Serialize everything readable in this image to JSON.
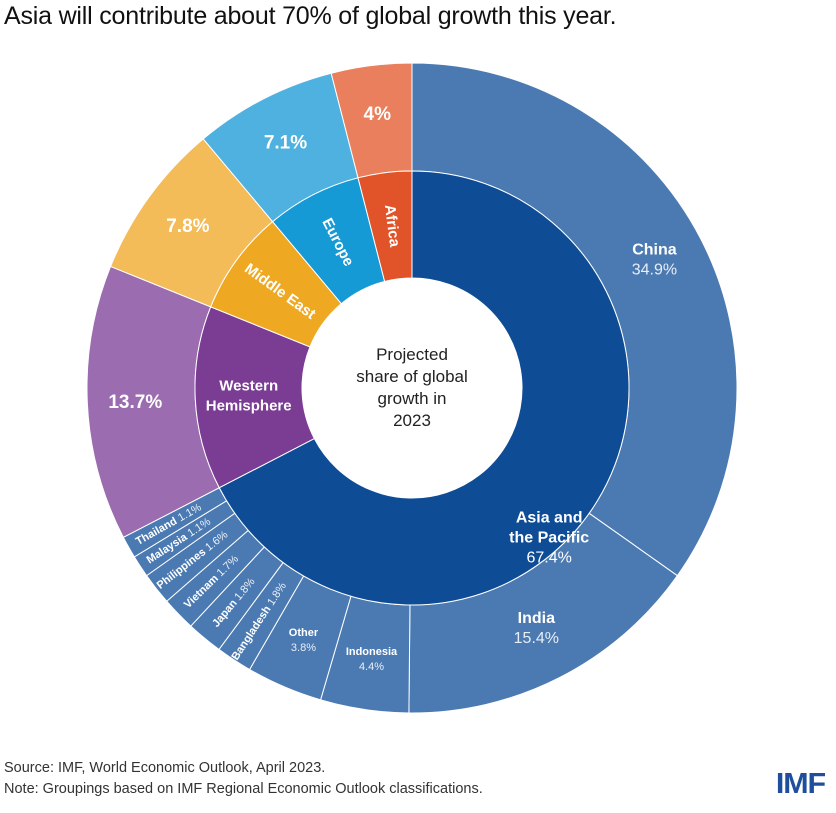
{
  "title": "Asia will contribute about 70% of global growth this year.",
  "source_line": "Source: IMF, World Economic Outlook, April 2023.",
  "note_line": "Note: Groupings based on IMF Regional Economic Outlook classifications.",
  "logo": "IMF",
  "chart_data": {
    "type": "pie",
    "subtype": "sunburst-donut",
    "title": "Asia will contribute about 70% of global growth this year.",
    "center_label": [
      "Projected",
      "share of global",
      "growth in",
      "2023"
    ],
    "unit": "% of projected global growth, 2023",
    "direction": "clockwise from top",
    "inner_ring": [
      {
        "name": "Asia and the Pacific",
        "value": 67.4,
        "label_lines": [
          "Asia and",
          "the Pacific",
          "67.4%"
        ],
        "color": "#0f4c96"
      },
      {
        "name": "Western Hemisphere",
        "value": 13.7,
        "label_lines": [
          "Western",
          "Hemisphere"
        ],
        "color": "#7b3c93"
      },
      {
        "name": "Middle East",
        "value": 7.8,
        "label_lines": [
          "Middle East"
        ],
        "color": "#efa821"
      },
      {
        "name": "Europe",
        "value": 7.1,
        "label_lines": [
          "Europe"
        ],
        "color": "#169ad6"
      },
      {
        "name": "Africa",
        "value": 4.0,
        "label_lines": [
          "Africa"
        ],
        "color": "#e15329"
      }
    ],
    "outer_ring": [
      {
        "name": "China",
        "parent": "Asia and the Pacific",
        "value": 34.9,
        "label": "China",
        "value_label": "34.9%",
        "color": "#4b7ab2"
      },
      {
        "name": "India",
        "parent": "Asia and the Pacific",
        "value": 15.4,
        "label": "India",
        "value_label": "15.4%",
        "color": "#4b7ab2"
      },
      {
        "name": "Indonesia",
        "parent": "Asia and the Pacific",
        "value": 4.4,
        "label": "Indonesia",
        "value_label": "4.4%",
        "color": "#4b7ab2"
      },
      {
        "name": "Other",
        "parent": "Asia and the Pacific",
        "value": 3.8,
        "label": "Other",
        "value_label": "3.8%",
        "color": "#4b7ab2"
      },
      {
        "name": "Bangladesh",
        "parent": "Asia and the Pacific",
        "value": 1.8,
        "label": "Bangladesh",
        "value_label": "1.8%",
        "color": "#4b7ab2"
      },
      {
        "name": "Japan",
        "parent": "Asia and the Pacific",
        "value": 1.8,
        "label": "Japan",
        "value_label": "1.8%",
        "color": "#4b7ab2"
      },
      {
        "name": "Vietnam",
        "parent": "Asia and the Pacific",
        "value": 1.7,
        "label": "Vietnam",
        "value_label": "1.7%",
        "color": "#4b7ab2"
      },
      {
        "name": "Philippines",
        "parent": "Asia and the Pacific",
        "value": 1.6,
        "label": "Philippines",
        "value_label": "1.6%",
        "color": "#4b7ab2"
      },
      {
        "name": "Malaysia",
        "parent": "Asia and the Pacific",
        "value": 1.1,
        "label": "Malaysia",
        "value_label": "1.1%",
        "color": "#4b7ab2"
      },
      {
        "name": "Thailand",
        "parent": "Asia and the Pacific",
        "value": 1.1,
        "label": "Thailand",
        "value_label": "1.1%",
        "color": "#4b7ab2"
      },
      {
        "name": "Western Hemisphere",
        "parent": "Western Hemisphere",
        "value": 13.7,
        "label": "",
        "value_label": "13.7%",
        "color": "#9b6cb0"
      },
      {
        "name": "Middle East",
        "parent": "Middle East",
        "value": 7.8,
        "label": "",
        "value_label": "7.8%",
        "color": "#f3bc58"
      },
      {
        "name": "Europe",
        "parent": "Europe",
        "value": 7.1,
        "label": "",
        "value_label": "7.1%",
        "color": "#4fb1e0"
      },
      {
        "name": "Africa",
        "parent": "Africa",
        "value": 4.0,
        "label": "",
        "value_label": "4%",
        "color": "#e97f5c"
      }
    ]
  }
}
